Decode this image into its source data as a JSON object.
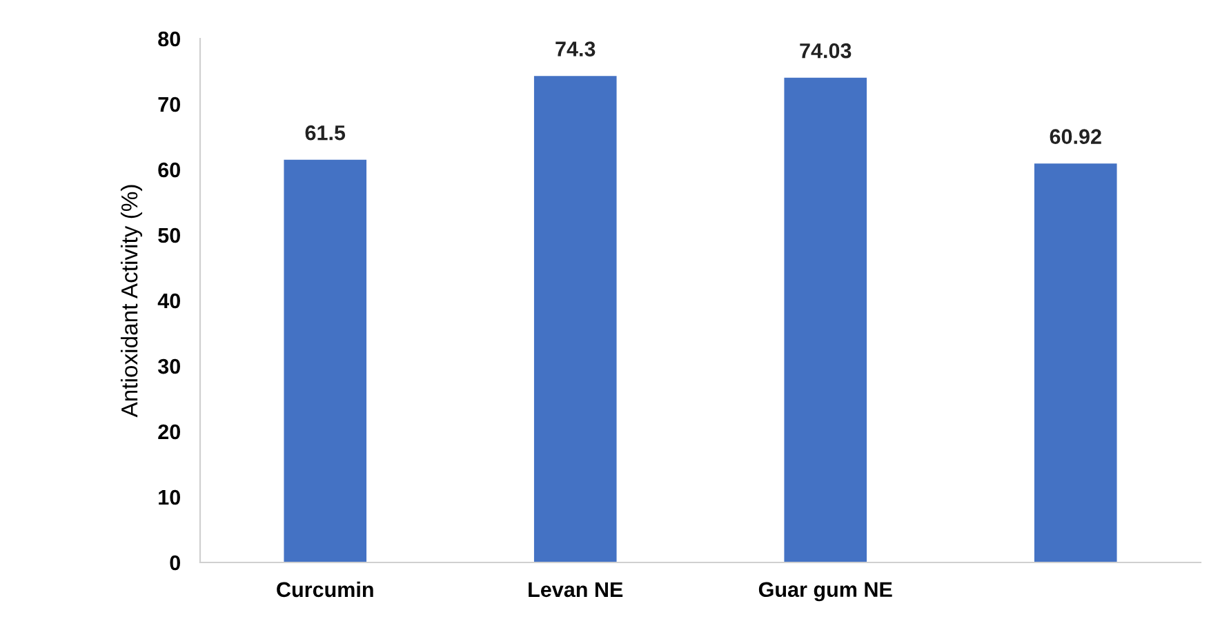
{
  "chart_data": {
    "type": "bar",
    "ylabel": "Antioxidant Activity (%)",
    "categories": [
      "Curcumin",
      "Levan NE",
      "Guar gum NE",
      null
    ],
    "values": [
      61.5,
      74.3,
      74.03,
      60.92
    ],
    "color": "#4472c4",
    "ylim": [
      0,
      80
    ],
    "yticks": [
      0,
      10,
      20,
      30,
      40,
      50,
      60,
      70,
      80
    ],
    "grid": false,
    "data_labels": true
  }
}
